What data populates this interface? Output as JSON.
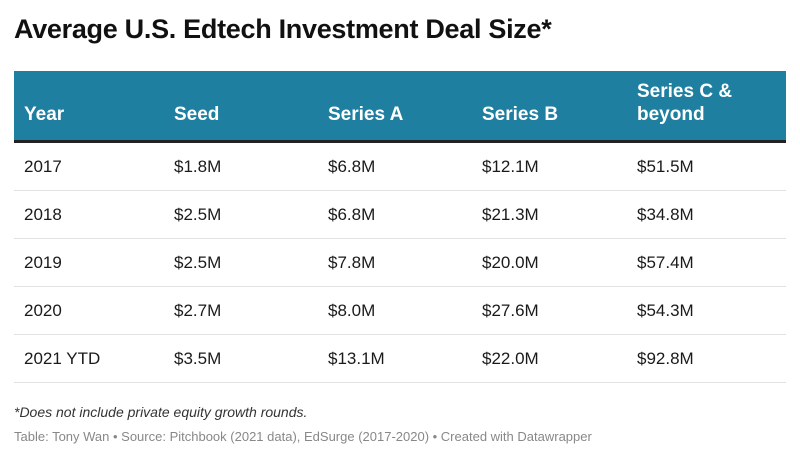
{
  "chart_data": {
    "type": "table",
    "title": "Average U.S. Edtech Investment Deal Size*",
    "columns": [
      "Year",
      "Seed",
      "Series A",
      "Series B",
      "Series C & beyond"
    ],
    "rows": [
      [
        "2017",
        "$1.8M",
        "$6.8M",
        "$12.1M",
        "$51.5M"
      ],
      [
        "2018",
        "$2.5M",
        "$6.8M",
        "$21.3M",
        "$34.8M"
      ],
      [
        "2019",
        "$2.5M",
        "$7.8M",
        "$20.0M",
        "$57.4M"
      ],
      [
        "2020",
        "$2.7M",
        "$8.0M",
        "$27.6M",
        "$54.3M"
      ],
      [
        "2021 YTD",
        "$3.5M",
        "$13.1M",
        "$22.0M",
        "$92.8M"
      ]
    ],
    "values_musd": {
      "Seed": [
        1.8,
        2.5,
        2.5,
        2.7,
        3.5
      ],
      "Series A": [
        6.8,
        6.8,
        7.8,
        8.0,
        13.1
      ],
      "Series B": [
        12.1,
        21.3,
        20.0,
        27.6,
        22.0
      ],
      "Series C & beyond": [
        51.5,
        34.8,
        57.4,
        54.3,
        92.8
      ]
    },
    "note": "*Does not include private equity growth rounds.",
    "credit": "Table: Tony Wan • Source: Pitchbook (2021 data), EdSurge (2017-2020) • Created with Datawrapper"
  },
  "colors": {
    "header_bg": "#1f7fa0",
    "header_text": "#ffffff",
    "header_rule": "#222222",
    "row_rule": "#e2e2e2",
    "credit_text": "#888888"
  }
}
